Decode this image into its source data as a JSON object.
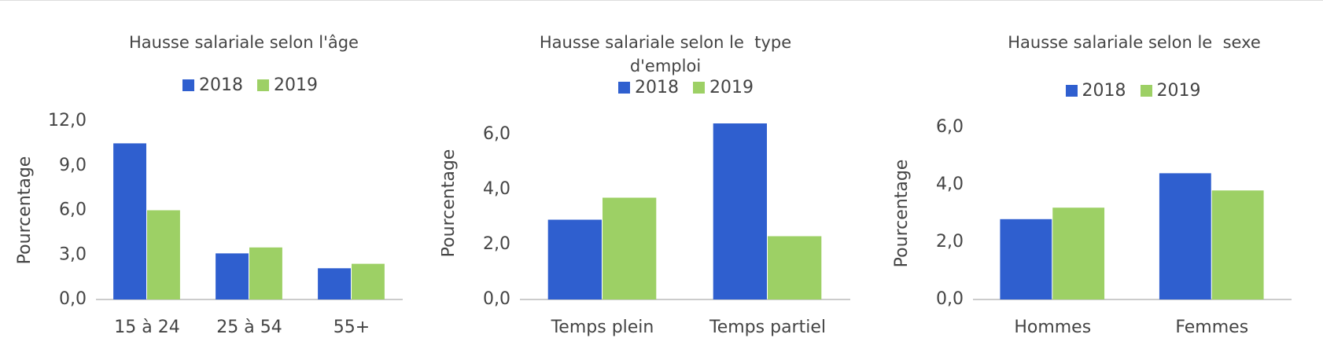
{
  "chart_data": [
    {
      "type": "bar",
      "title": "Hausse salariale selon l'âge",
      "y_label": "Pourcentage",
      "categories": [
        "15 à 24",
        "25 à 54",
        "55+"
      ],
      "series": [
        {
          "name": "2018",
          "color": "#2f5fcf",
          "values": [
            10.5,
            3.1,
            2.1
          ]
        },
        {
          "name": "2019",
          "color": "#9dd065",
          "values": [
            6.0,
            3.5,
            2.4
          ]
        }
      ],
      "ylim": [
        0,
        12
      ],
      "yticks": [
        {
          "value": 0,
          "label": "0,0"
        },
        {
          "value": 3,
          "label": "3,0"
        },
        {
          "value": 6,
          "label": "6,0"
        },
        {
          "value": 9,
          "label": "9,0"
        },
        {
          "value": 12,
          "label": "12,0"
        }
      ]
    },
    {
      "type": "bar",
      "title": "Hausse salariale selon le  type d'emploi",
      "y_label": "Pourcentage",
      "categories": [
        "Temps plein",
        "Temps partiel"
      ],
      "series": [
        {
          "name": "2018",
          "color": "#2f5fcf",
          "values": [
            2.9,
            6.4
          ]
        },
        {
          "name": "2019",
          "color": "#9dd065",
          "values": [
            3.7,
            2.3
          ]
        }
      ],
      "ylim": [
        0,
        7
      ],
      "yticks": [
        {
          "value": 0,
          "label": "0,0"
        },
        {
          "value": 2,
          "label": "2,0"
        },
        {
          "value": 4,
          "label": "4,0"
        },
        {
          "value": 6,
          "label": "6,0"
        }
      ]
    },
    {
      "type": "bar",
      "title": "Hausse salariale selon le  sexe",
      "y_label": "Pourcentage",
      "categories": [
        "Hommes",
        "Femmes"
      ],
      "series": [
        {
          "name": "2018",
          "color": "#2f5fcf",
          "values": [
            2.8,
            4.4
          ]
        },
        {
          "name": "2019",
          "color": "#9dd065",
          "values": [
            3.2,
            3.8
          ]
        }
      ],
      "ylim": [
        0,
        6
      ],
      "yticks": [
        {
          "value": 0,
          "label": "0,0"
        },
        {
          "value": 2,
          "label": "2,0"
        },
        {
          "value": 4,
          "label": "4,0"
        },
        {
          "value": 6,
          "label": "6,0"
        }
      ]
    }
  ]
}
